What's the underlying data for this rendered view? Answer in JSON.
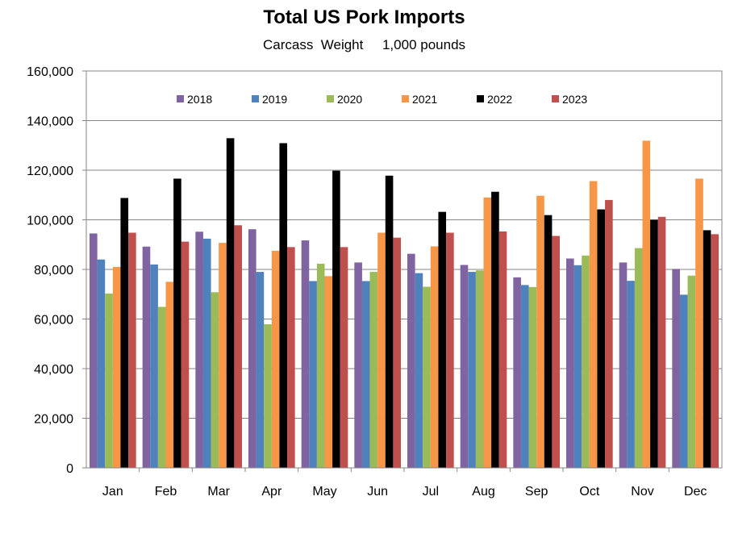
{
  "chart_data": {
    "type": "bar",
    "title": "Total US Pork Imports",
    "subtitle": "Carcass  Weight     1,000 pounds",
    "xlabel": "",
    "ylabel": "",
    "ylim": [
      0,
      160000
    ],
    "y_ticks": [
      0,
      20000,
      40000,
      60000,
      80000,
      100000,
      120000,
      140000,
      160000
    ],
    "y_tick_labels": [
      "0",
      "20,000",
      "40,000",
      "60,000",
      "80,000",
      "100,000",
      "120,000",
      "140,000",
      "160,000"
    ],
    "grid": true,
    "legend_position": "top-center",
    "categories": [
      "Jan",
      "Feb",
      "Mar",
      "Apr",
      "May",
      "Jun",
      "Jul",
      "Aug",
      "Sep",
      "Oct",
      "Nov",
      "Dec"
    ],
    "series": [
      {
        "name": "2018",
        "color": "#8064A2",
        "values": [
          94500,
          89200,
          95200,
          96200,
          91700,
          82800,
          86300,
          81800,
          76800,
          84400,
          82800,
          80200
        ]
      },
      {
        "name": "2019",
        "color": "#4F81BD",
        "values": [
          84000,
          82000,
          92400,
          79000,
          75300,
          75300,
          78500,
          79000,
          73700,
          81700,
          75400,
          69800
        ]
      },
      {
        "name": "2020",
        "color": "#9BBB59",
        "values": [
          70300,
          64900,
          70800,
          57900,
          82300,
          79000,
          73000,
          79600,
          72900,
          85600,
          88600,
          77500
        ]
      },
      {
        "name": "2021",
        "color": "#F79646",
        "values": [
          81000,
          75000,
          90700,
          87500,
          77300,
          94800,
          89300,
          109000,
          109700,
          115600,
          131900,
          116600
        ]
      },
      {
        "name": "2022",
        "color": "#000000",
        "values": [
          108800,
          116600,
          132900,
          130900,
          119800,
          117800,
          103200,
          111300,
          101900,
          104200,
          100000,
          95800
        ]
      },
      {
        "name": "2023",
        "color": "#C0504D",
        "values": [
          94800,
          91200,
          97800,
          89000,
          89000,
          92800,
          94800,
          95300,
          93500,
          108000,
          101200,
          94200
        ]
      }
    ]
  }
}
